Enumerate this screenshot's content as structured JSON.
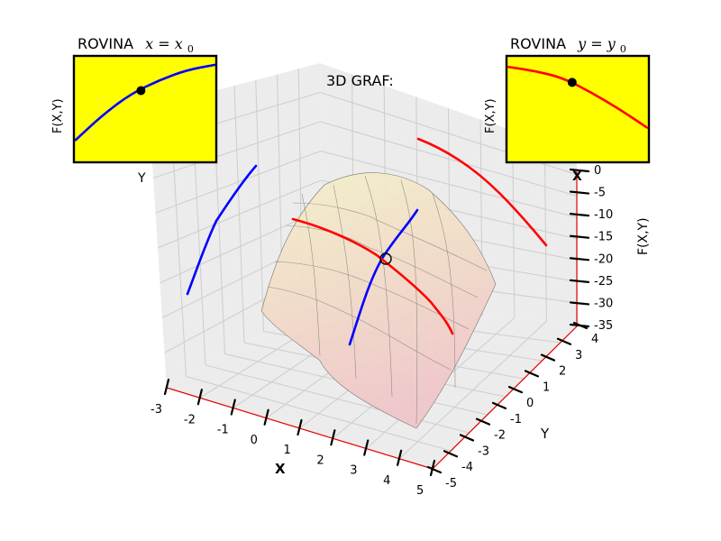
{
  "chart_data": [
    {
      "type": "surface3d",
      "title": "3D GRAF:",
      "xlabel": "X",
      "ylabel": "Y",
      "zlabel": "F(X,Y)",
      "xlim": [
        -3,
        5
      ],
      "ylim": [
        -5,
        4
      ],
      "zlim": [
        -35,
        0
      ],
      "x_ticks": [
        "-3",
        "-2",
        "-1",
        "0",
        "1",
        "2",
        "3",
        "4",
        "5"
      ],
      "y_ticks": [
        "-5",
        "-4",
        "-3",
        "-2",
        "-1",
        "0",
        "1",
        "2",
        "3",
        "4"
      ],
      "z_ticks": [
        "0",
        "-5",
        "-10",
        "-15",
        "-20",
        "-25",
        "-30",
        "-35"
      ],
      "grid": true,
      "series": [
        {
          "color": "#0000ff"
        },
        {
          "color": "#ff0000"
        }
      ]
    },
    {
      "type": "line",
      "title": "ROVINA x=x0",
      "title_text": "ROVINA",
      "title_math": "x = x",
      "title_sub": "0",
      "xlabel": "Y",
      "ylabel": "F(X,Y)",
      "series": [
        {
          "color": "#0000ff",
          "x": [
            0,
            0.2,
            0.4,
            0.6,
            0.8,
            1.0
          ],
          "y": [
            0.2,
            0.45,
            0.65,
            0.78,
            0.88,
            0.93
          ]
        }
      ],
      "marker": {
        "x": 0.47,
        "y": 0.68
      }
    },
    {
      "type": "line",
      "title": "ROVINA y=y0",
      "title_text": "ROVINA",
      "title_math": "y = y",
      "title_sub": "0",
      "xlabel": "X",
      "ylabel": "F(X,Y)",
      "series": [
        {
          "color": "#ff0000",
          "x": [
            0,
            0.2,
            0.4,
            0.6,
            0.8,
            1.0
          ],
          "y": [
            0.91,
            0.87,
            0.8,
            0.66,
            0.5,
            0.32
          ]
        }
      ],
      "marker": {
        "x": 0.46,
        "y": 0.76
      }
    }
  ],
  "colors": {
    "inset_bg": "#ffff00",
    "axis_red": "#e10000",
    "surface_top": "#f3f0c4",
    "surface_bottom": "#f0c8c8"
  }
}
